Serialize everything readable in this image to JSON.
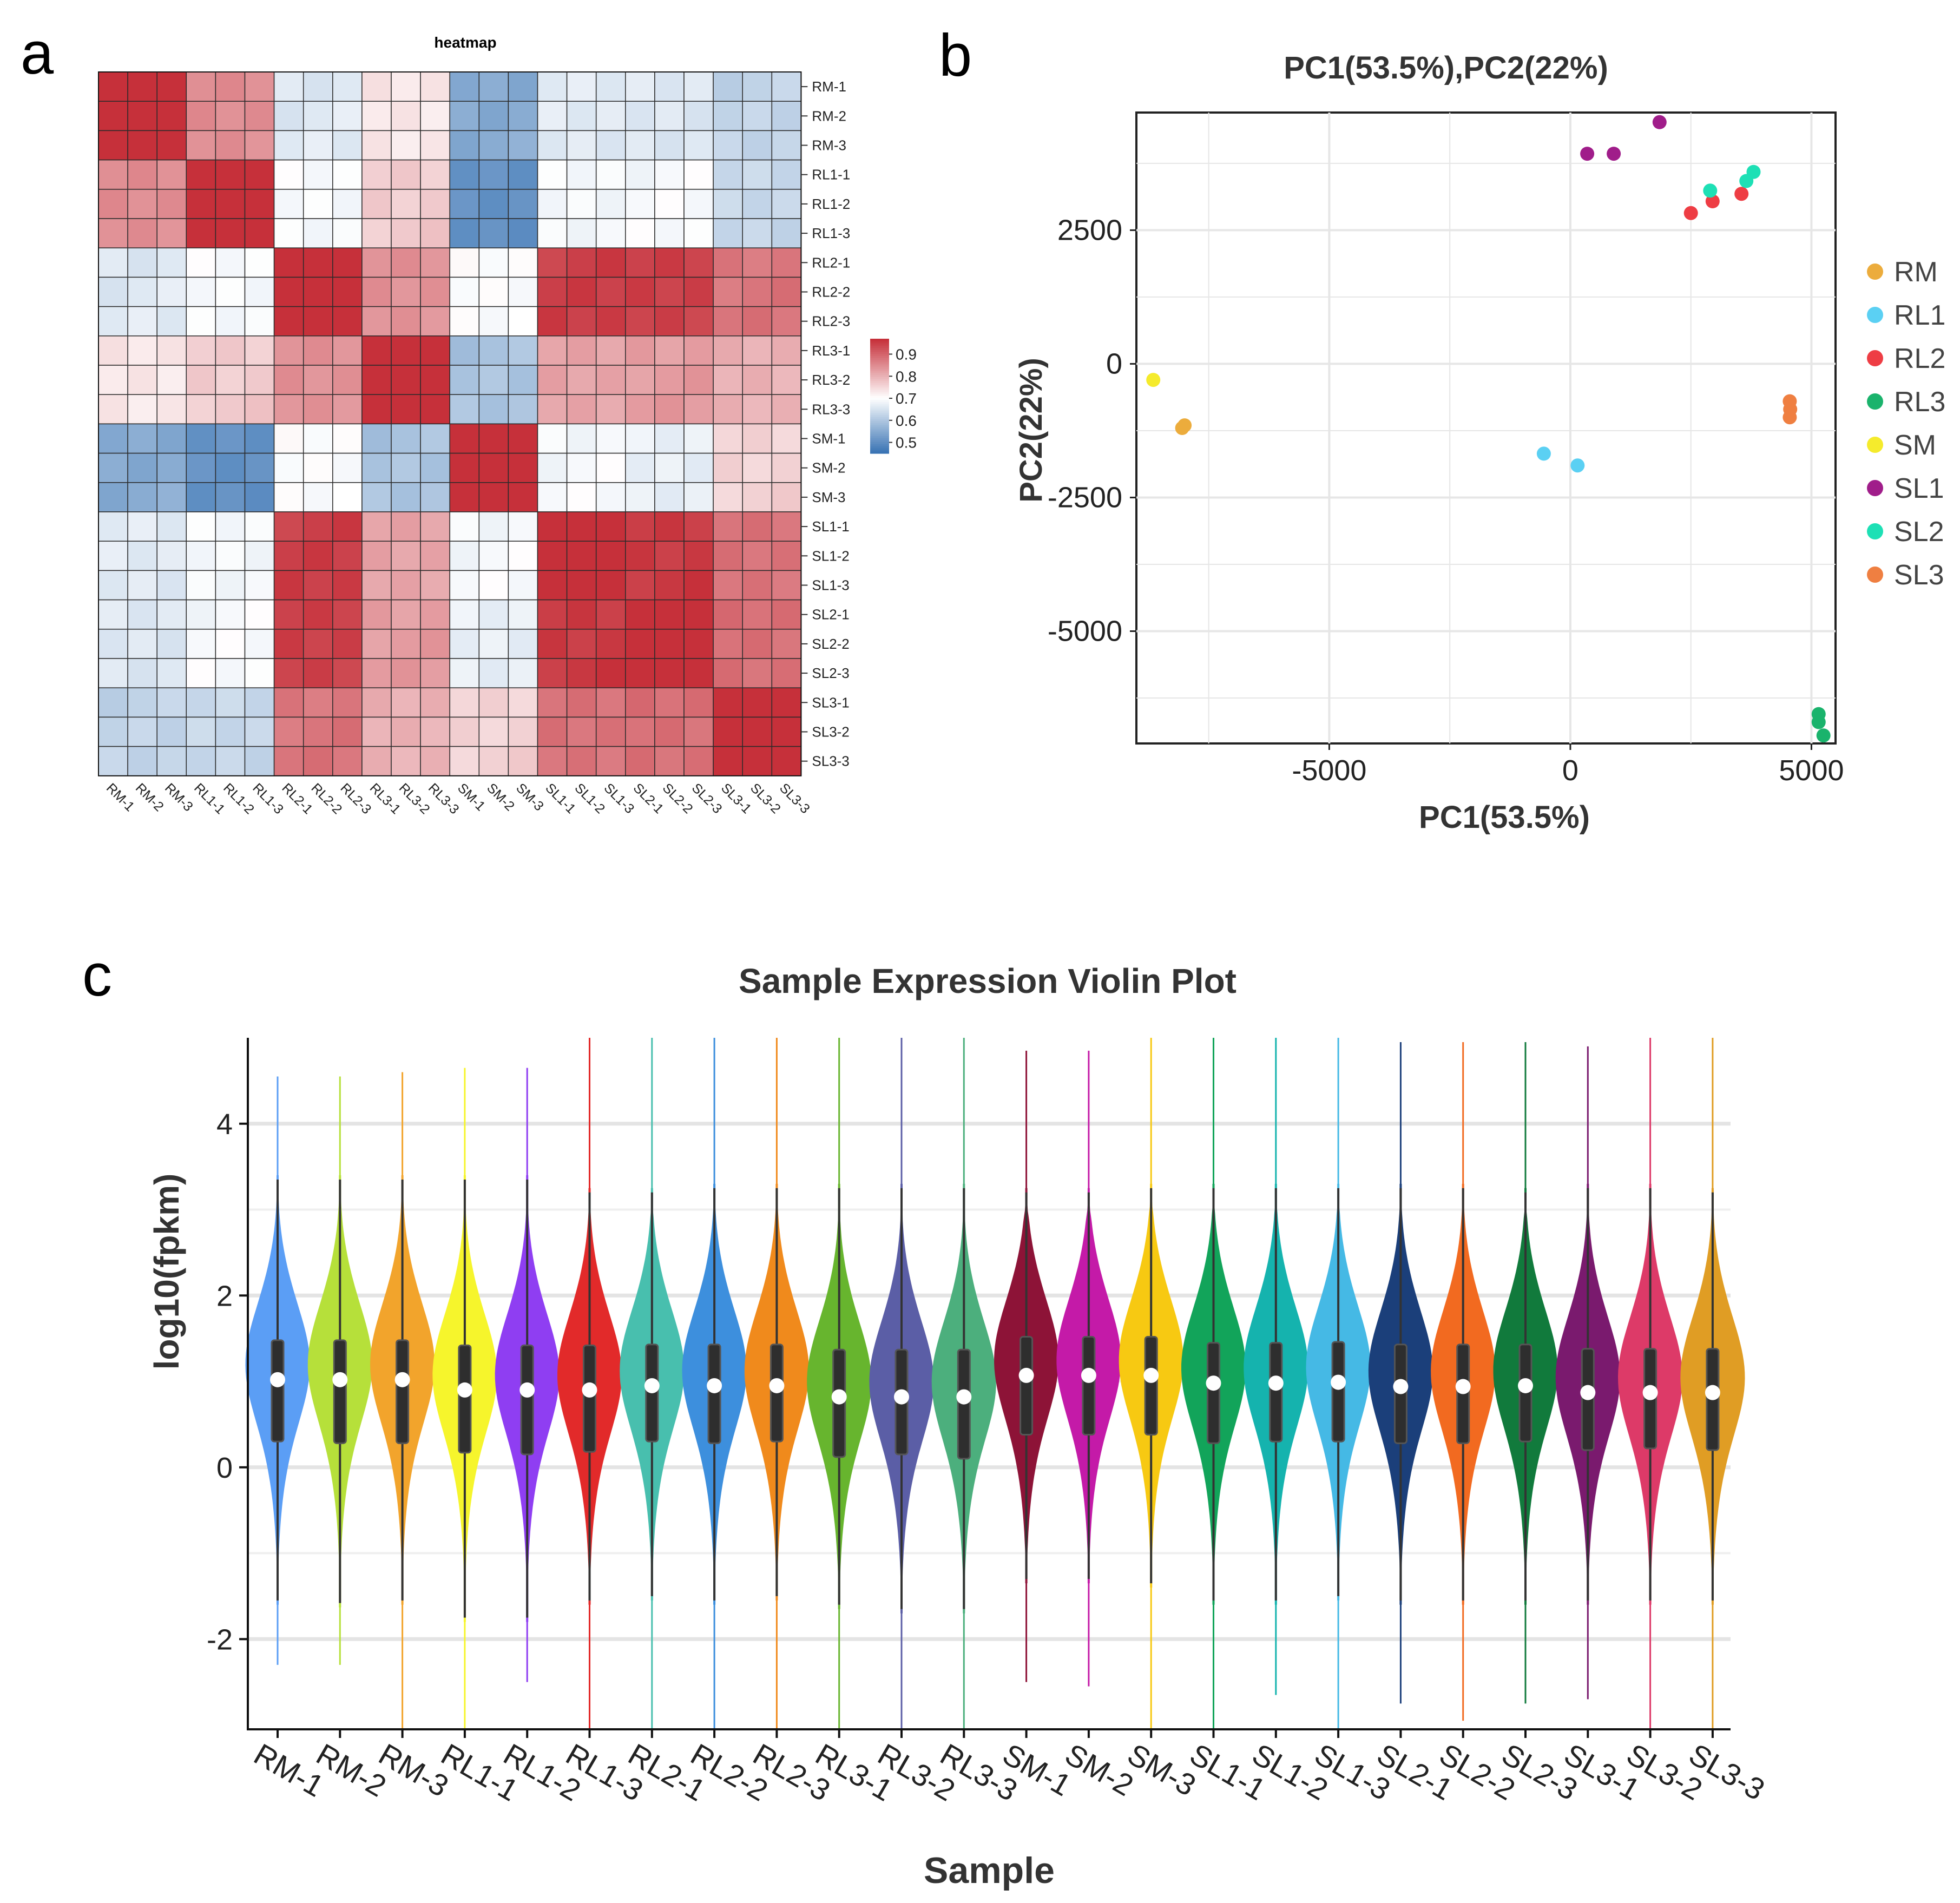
{
  "panels": {
    "a": "a",
    "b": "b",
    "c": "c"
  },
  "chart_data": [
    {
      "type": "heatmap",
      "title": "heatmap",
      "row_labels": [
        "RM-1",
        "RM-2",
        "RM-3",
        "RL1-1",
        "RL1-2",
        "RL1-3",
        "RL2-1",
        "RL2-2",
        "RL2-3",
        "RL3-1",
        "RL3-2",
        "RL3-3",
        "SM-1",
        "SM-2",
        "SM-3",
        "SL1-1",
        "SL1-2",
        "SL1-3",
        "SL2-1",
        "SL2-2",
        "SL2-3",
        "SL3-1",
        "SL3-2",
        "SL3-3"
      ],
      "col_labels": [
        "RM-1",
        "RM-2",
        "RM-3",
        "RL1-1",
        "RL1-2",
        "RL1-3",
        "RL2-1",
        "RL2-2",
        "RL2-3",
        "RL3-1",
        "RL3-2",
        "RL3-3",
        "SM-1",
        "SM-2",
        "SM-3",
        "SL1-1",
        "SL1-2",
        "SL1-3",
        "SL2-1",
        "SL2-2",
        "SL2-3",
        "SL3-1",
        "SL3-2",
        "SL3-3"
      ],
      "group_similarity": {
        "groups": [
          "RM",
          "RL1",
          "RL2",
          "RL3",
          "SM",
          "SL1",
          "SL2",
          "SL3"
        ],
        "matrix": [
          [
            0.97,
            0.85,
            0.66,
            0.73,
            0.55,
            0.66,
            0.66,
            0.62
          ],
          [
            0.85,
            0.97,
            0.69,
            0.77,
            0.5,
            0.69,
            0.69,
            0.63
          ],
          [
            0.66,
            0.69,
            0.97,
            0.84,
            0.7,
            0.95,
            0.95,
            0.88
          ],
          [
            0.73,
            0.77,
            0.84,
            0.97,
            0.59,
            0.82,
            0.83,
            0.8
          ],
          [
            0.55,
            0.5,
            0.7,
            0.59,
            0.97,
            0.69,
            0.67,
            0.76
          ],
          [
            0.66,
            0.69,
            0.95,
            0.82,
            0.69,
            0.97,
            0.96,
            0.88
          ],
          [
            0.66,
            0.69,
            0.95,
            0.83,
            0.67,
            0.96,
            0.97,
            0.89
          ],
          [
            0.62,
            0.63,
            0.88,
            0.8,
            0.76,
            0.88,
            0.89,
            0.97
          ]
        ]
      },
      "legend": {
        "ticks": [
          "0.9",
          "0.8",
          "0.7",
          "0.6",
          "0.5"
        ],
        "tick_values": [
          0.9,
          0.8,
          0.7,
          0.6,
          0.5
        ],
        "range": [
          0.45,
          0.97
        ],
        "low_color": "#3a74b4",
        "mid_color": "#ffffff",
        "high_color": "#c6303a"
      }
    },
    {
      "type": "scatter",
      "title": "PC1(53.5%),PC2(22%)",
      "xlabel": "PC1(53.5%)",
      "ylabel": "PC2(22%)",
      "xlim": [
        -9000,
        5500
      ],
      "ylim": [
        -7100,
        4700
      ],
      "xticks": [
        -5000,
        0,
        5000
      ],
      "xtick_labels": [
        "-5000",
        "0",
        "5000"
      ],
      "yticks": [
        2500,
        0,
        -2500,
        -5000
      ],
      "ytick_labels": [
        "2500",
        "0",
        "-2500",
        "-5000"
      ],
      "series": [
        {
          "name": "RM",
          "color": "#ecac3c",
          "points": [
            [
              -8050,
              -1200
            ],
            [
              -8000,
              -1150
            ]
          ]
        },
        {
          "name": "RL1",
          "color": "#5bd0f3",
          "points": [
            [
              -550,
              -1680
            ],
            [
              150,
              -1900
            ]
          ]
        },
        {
          "name": "RL2",
          "color": "#ee3d44",
          "points": [
            [
              2500,
              2820
            ],
            [
              2950,
              3040
            ],
            [
              3550,
              3180
            ]
          ]
        },
        {
          "name": "RL3",
          "color": "#1ab36c",
          "points": [
            [
              5150,
              -6550
            ],
            [
              5150,
              -6700
            ],
            [
              5250,
              -6950
            ]
          ]
        },
        {
          "name": "SM",
          "color": "#f5eb2c",
          "points": [
            [
              -8650,
              -300
            ]
          ]
        },
        {
          "name": "SL1",
          "color": "#a01d8a",
          "points": [
            [
              350,
              3930
            ],
            [
              900,
              3930
            ],
            [
              1850,
              4520
            ]
          ]
        },
        {
          "name": "SL2",
          "color": "#1de0b5",
          "points": [
            [
              2900,
              3240
            ],
            [
              3650,
              3420
            ],
            [
              3800,
              3590
            ]
          ]
        },
        {
          "name": "SL3",
          "color": "#ef7f41",
          "points": [
            [
              4550,
              -700
            ],
            [
              4560,
              -850
            ],
            [
              4550,
              -1000
            ]
          ]
        }
      ]
    },
    {
      "type": "violin",
      "title": "Sample Expression Violin Plot",
      "xlabel": "Sample",
      "ylabel": "log10(fpkm)",
      "ylim": [
        -3.05,
        5.0
      ],
      "yticks": [
        -2,
        0,
        2,
        4
      ],
      "ytick_labels": [
        "-2",
        "0",
        "2",
        "4"
      ],
      "categories": [
        "RM-1",
        "RM-2",
        "RM-3",
        "RL1-1",
        "RL1-2",
        "RL1-3",
        "RL2-1",
        "RL2-2",
        "RL2-3",
        "RL3-1",
        "RL3-2",
        "RL3-3",
        "SM-1",
        "SM-2",
        "SM-3",
        "SL1-1",
        "SL1-2",
        "SL1-3",
        "SL2-1",
        "SL2-2",
        "SL2-3",
        "SL3-1",
        "SL3-2",
        "SL3-3"
      ],
      "colors": [
        "#5b9ef5",
        "#b6e03a",
        "#f2a42c",
        "#f6f52c",
        "#8f3ef2",
        "#e22a2a",
        "#48bfae",
        "#3d8fdd",
        "#f08a1c",
        "#67b52e",
        "#5b5ea6",
        "#4caf7d",
        "#8d1337",
        "#c41aa8",
        "#f7c912",
        "#12a45a",
        "#15b3ae",
        "#45b9e5",
        "#1b3f7a",
        "#f26a20",
        "#117a3c",
        "#7a1a6e",
        "#dd3a68",
        "#e09d24"
      ],
      "medians": [
        1.02,
        1.02,
        1.02,
        0.9,
        0.9,
        0.9,
        0.95,
        0.95,
        0.95,
        0.82,
        0.82,
        0.82,
        1.07,
        1.07,
        1.07,
        0.98,
        0.98,
        0.99,
        0.94,
        0.94,
        0.95,
        0.87,
        0.87,
        0.87
      ],
      "q1": [
        0.3,
        0.28,
        0.28,
        0.17,
        0.15,
        0.18,
        0.3,
        0.28,
        0.3,
        0.12,
        0.15,
        0.1,
        0.38,
        0.38,
        0.38,
        0.28,
        0.3,
        0.3,
        0.28,
        0.28,
        0.3,
        0.2,
        0.22,
        0.2
      ],
      "q3": [
        1.48,
        1.48,
        1.48,
        1.42,
        1.42,
        1.42,
        1.43,
        1.43,
        1.43,
        1.37,
        1.37,
        1.37,
        1.52,
        1.52,
        1.52,
        1.45,
        1.45,
        1.46,
        1.43,
        1.43,
        1.43,
        1.38,
        1.38,
        1.38
      ],
      "whisker_low": [
        -1.55,
        -1.58,
        -1.55,
        -1.75,
        -1.75,
        -1.55,
        -1.5,
        -1.55,
        -1.5,
        -1.6,
        -1.65,
        -1.65,
        -1.3,
        -1.3,
        -1.35,
        -1.55,
        -1.55,
        -1.5,
        -1.55,
        -1.55,
        -1.55,
        -1.55,
        -1.55,
        -1.55
      ],
      "whisker_high": [
        3.35,
        3.35,
        3.35,
        3.35,
        3.35,
        3.2,
        3.2,
        3.25,
        3.25,
        3.25,
        3.25,
        3.25,
        3.2,
        3.2,
        3.25,
        3.25,
        3.25,
        3.25,
        3.25,
        3.25,
        3.2,
        3.25,
        3.25,
        3.2
      ],
      "mins": [
        -2.3,
        -2.3,
        -3.05,
        -3.05,
        -2.5,
        -3.05,
        -3.05,
        -3.05,
        -3.05,
        -3.05,
        -3.05,
        -3.05,
        -2.5,
        -2.55,
        -3.05,
        -3.05,
        -2.65,
        -3.05,
        -2.75,
        -2.95,
        -2.75,
        -2.7,
        -3.05,
        -3.05
      ],
      "maxs": [
        4.55,
        4.55,
        4.6,
        4.65,
        4.65,
        5.0,
        5.0,
        5.0,
        5.0,
        5.0,
        5.0,
        5.0,
        4.85,
        4.85,
        5.0,
        5.0,
        5.0,
        5.0,
        4.95,
        4.95,
        4.95,
        4.9,
        5.0,
        5.0
      ]
    }
  ]
}
